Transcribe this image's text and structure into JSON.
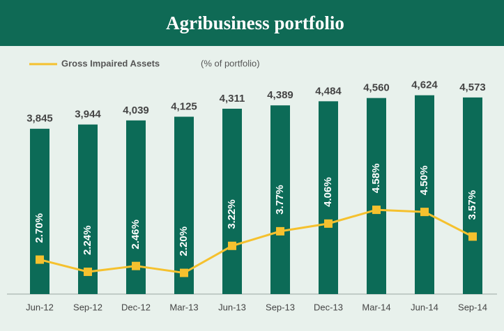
{
  "chart_data": {
    "type": "bar",
    "title": "Agribusiness portfolio",
    "categories": [
      "Jun-12",
      "Sep-12",
      "Dec-12",
      "Mar-13",
      "Jun-13",
      "Sep-13",
      "Dec-13",
      "Mar-14",
      "Jun-14",
      "Sep-14"
    ],
    "series": [
      {
        "type": "bar",
        "color": "#0c6b57",
        "values": [
          3845,
          3944,
          4039,
          4125,
          4311,
          4389,
          4484,
          4560,
          4624,
          4573
        ],
        "value_labels": [
          "3,845",
          "3,944",
          "4,039",
          "4,125",
          "4,311",
          "4,389",
          "4,484",
          "4,560",
          "4,624",
          "4,573"
        ]
      },
      {
        "type": "line",
        "name": "Gross Impaired Assets",
        "axis": "y2",
        "color": "#f5c12e",
        "values": [
          2.7,
          2.24,
          2.46,
          2.2,
          3.22,
          3.77,
          4.06,
          4.58,
          4.5,
          3.57
        ],
        "value_labels": [
          "2.70%",
          "2.24%",
          "2.46%",
          "2.20%",
          "3.22%",
          "3.77%",
          "4.06%",
          "4.58%",
          "4.50%",
          "3.57%"
        ]
      }
    ],
    "legend_note": "(% of portfolio)",
    "legend": "top-left",
    "ylim": [
      0,
      5300
    ],
    "y2lim": [
      1.4,
      10
    ]
  }
}
